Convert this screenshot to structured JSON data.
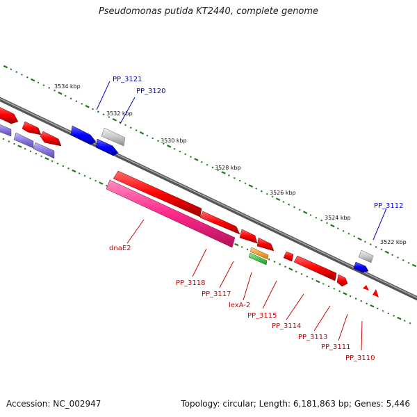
{
  "title": "Pseudomonas putida KT2440, complete genome",
  "footer": {
    "accession": "Accession: NC_002947",
    "summary": "Topology: circular; Length: 6,181,863 bp; Genes: 5,446"
  },
  "ruler": [
    "3534 kbp",
    "3532 kbp",
    "3530 kbp",
    "3528 kbp",
    "3526 kbp",
    "3524 kbp",
    "3522 kbp"
  ],
  "gene_labels": [
    {
      "text": "PP_3121",
      "color": "#0000cc"
    },
    {
      "text": "PP_3120",
      "color": "#0000cc"
    },
    {
      "text": "PP_3112",
      "color": "#0000cc"
    },
    {
      "text": "dnaE2",
      "color": "#cc0000"
    },
    {
      "text": "PP_3118",
      "color": "#cc0000"
    },
    {
      "text": "PP_3117",
      "color": "#cc0000"
    },
    {
      "text": "lexA-2",
      "color": "#cc0000"
    },
    {
      "text": "PP_3115",
      "color": "#cc0000"
    },
    {
      "text": "PP_3114",
      "color": "#cc0000"
    },
    {
      "text": "PP_3113",
      "color": "#cc0000"
    },
    {
      "text": "PP_3111",
      "color": "#cc0000"
    },
    {
      "text": "PP_3110",
      "color": "#cc0000"
    }
  ],
  "colors": {
    "forward_gene": "#ff0000",
    "reverse_gene": "#ff0000",
    "blue_gene": "#0000ff",
    "grey_gene": "#c8c8c8",
    "pink_gene": "#ff2a8a",
    "purple_gene": "#8a7ae0",
    "tick": "#1a7a1a"
  }
}
